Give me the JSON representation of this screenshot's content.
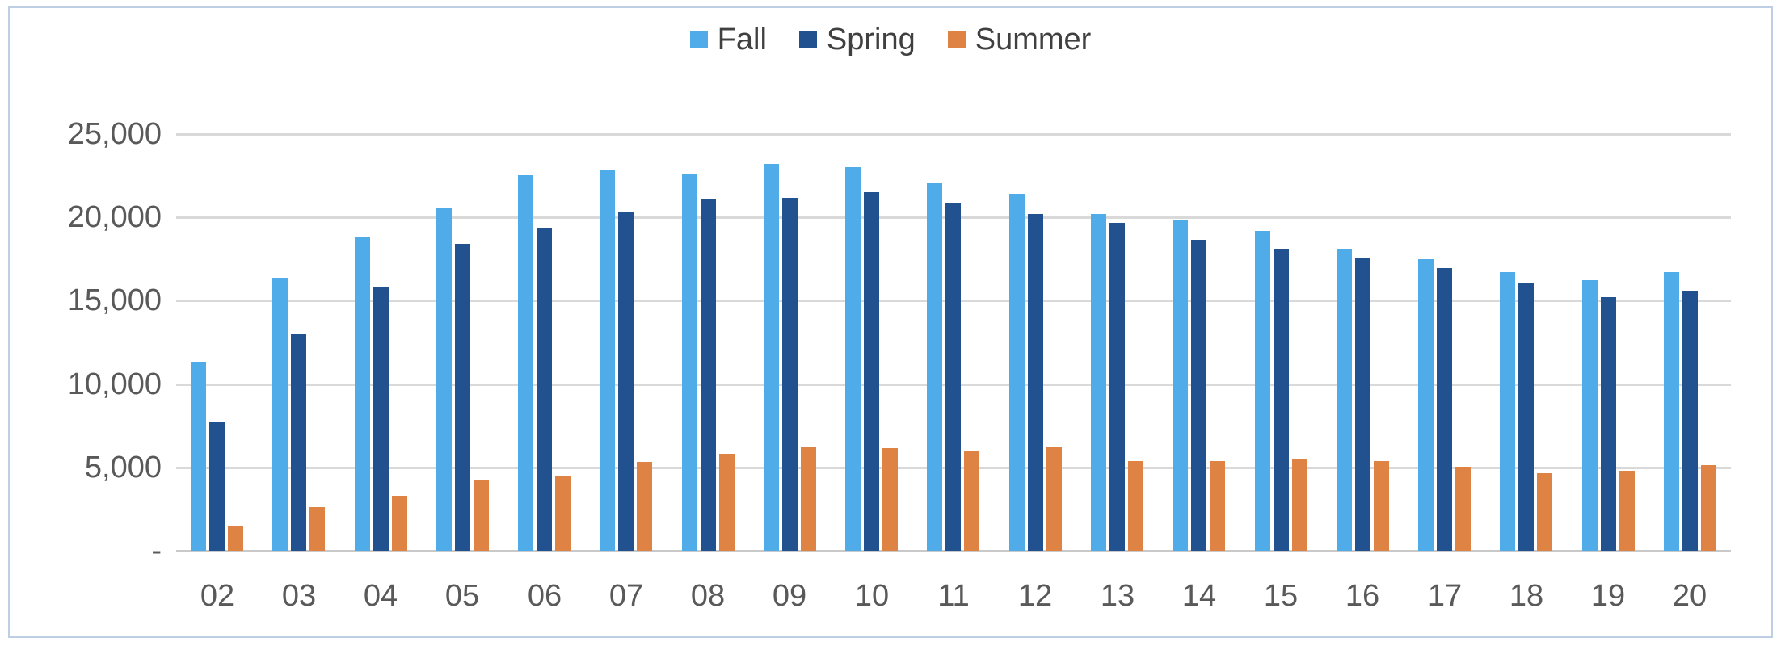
{
  "chart_data": {
    "type": "bar",
    "title": "",
    "xlabel": "",
    "ylabel": "",
    "categories": [
      "02",
      "03",
      "04",
      "05",
      "06",
      "07",
      "08",
      "09",
      "10",
      "11",
      "12",
      "13",
      "14",
      "15",
      "16",
      "17",
      "18",
      "19",
      "20"
    ],
    "series": [
      {
        "name": "Fall",
        "color": "#4FACE9",
        "values": [
          11350,
          16400,
          18800,
          20550,
          22550,
          22800,
          22650,
          23200,
          23000,
          22050,
          21400,
          20200,
          19800,
          19200,
          18100,
          17500,
          16700,
          16250,
          16700
        ]
      },
      {
        "name": "Spring",
        "color": "#21518F",
        "values": [
          7700,
          13000,
          15850,
          18400,
          19400,
          20300,
          21100,
          21150,
          21500,
          20900,
          20200,
          19650,
          18650,
          18100,
          17550,
          16950,
          16100,
          15200,
          15600
        ]
      },
      {
        "name": "Summer",
        "color": "#DF8344",
        "values": [
          1450,
          2600,
          3300,
          4200,
          4500,
          5350,
          5800,
          6250,
          6150,
          5950,
          6200,
          5400,
          5400,
          5500,
          5400,
          5050,
          4650,
          4800,
          5150
        ]
      }
    ],
    "ylim": [
      0,
      25000
    ],
    "y_tick_step": 5000,
    "y_tick_labels": [
      "25,000",
      "20,000",
      "15,000",
      "10,000",
      "5,000",
      "-"
    ],
    "grid": true,
    "legend_position": "top-center"
  },
  "colors": {
    "gridline": "#D9D9D9",
    "zero_axis_line": "#C9C9C9",
    "axis_text": "#595959",
    "legend_text": "#404040",
    "frame_border": "#BFCFE3",
    "background": "#FFFFFF"
  }
}
